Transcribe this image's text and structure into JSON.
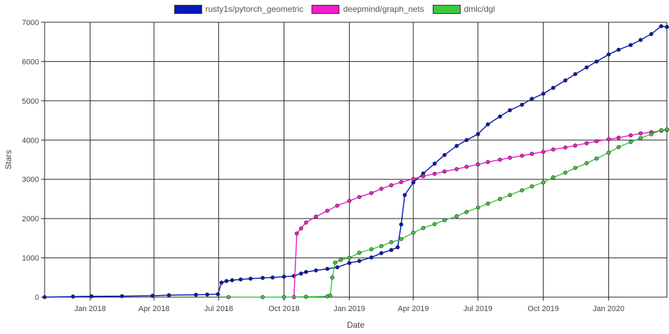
{
  "chart_data": {
    "type": "line",
    "xlabel": "Date",
    "ylabel": "Stars",
    "x_axis_type": "time",
    "xlim": [
      "2017-10-29",
      "2020-03-23"
    ],
    "ylim": [
      0,
      7000
    ],
    "x_ticks": [
      {
        "date": "2018-01-01",
        "label": "Jan 2018"
      },
      {
        "date": "2018-04-01",
        "label": "Apr 2018"
      },
      {
        "date": "2018-07-01",
        "label": "Jul 2018"
      },
      {
        "date": "2018-10-01",
        "label": "Oct 2018"
      },
      {
        "date": "2019-01-01",
        "label": "Jan 2019"
      },
      {
        "date": "2019-04-01",
        "label": "Apr 2019"
      },
      {
        "date": "2019-07-01",
        "label": "Jul 2019"
      },
      {
        "date": "2019-10-01",
        "label": "Oct 2019"
      },
      {
        "date": "2020-01-01",
        "label": "Jan 2020"
      }
    ],
    "y_ticks": [
      0,
      1000,
      2000,
      3000,
      4000,
      5000,
      6000,
      7000
    ],
    "grid": true,
    "legend_position": "top-center",
    "series": [
      {
        "name": "rusty1s/pytorch_geometric",
        "color": "#0a1ab5",
        "points": [
          [
            "2017-10-29",
            0
          ],
          [
            "2017-12-08",
            15
          ],
          [
            "2018-01-03",
            20
          ],
          [
            "2018-02-15",
            25
          ],
          [
            "2018-03-30",
            35
          ],
          [
            "2018-04-22",
            50
          ],
          [
            "2018-05-30",
            60
          ],
          [
            "2018-06-15",
            65
          ],
          [
            "2018-06-30",
            75
          ],
          [
            "2018-07-05",
            370
          ],
          [
            "2018-07-12",
            410
          ],
          [
            "2018-07-20",
            430
          ],
          [
            "2018-08-01",
            450
          ],
          [
            "2018-08-15",
            470
          ],
          [
            "2018-09-01",
            490
          ],
          [
            "2018-09-15",
            500
          ],
          [
            "2018-10-01",
            520
          ],
          [
            "2018-10-15",
            540
          ],
          [
            "2018-10-25",
            600
          ],
          [
            "2018-11-01",
            640
          ],
          [
            "2018-11-15",
            680
          ],
          [
            "2018-12-01",
            720
          ],
          [
            "2018-12-15",
            760
          ],
          [
            "2019-01-01",
            870
          ],
          [
            "2019-01-15",
            920
          ],
          [
            "2019-02-01",
            1010
          ],
          [
            "2019-02-15",
            1120
          ],
          [
            "2019-03-01",
            1200
          ],
          [
            "2019-03-10",
            1270
          ],
          [
            "2019-03-15",
            1850
          ],
          [
            "2019-03-20",
            2600
          ],
          [
            "2019-04-01",
            2920
          ],
          [
            "2019-04-15",
            3150
          ],
          [
            "2019-05-01",
            3400
          ],
          [
            "2019-05-15",
            3620
          ],
          [
            "2019-06-01",
            3850
          ],
          [
            "2019-06-15",
            4000
          ],
          [
            "2019-07-01",
            4150
          ],
          [
            "2019-07-15",
            4400
          ],
          [
            "2019-08-01",
            4600
          ],
          [
            "2019-08-15",
            4760
          ],
          [
            "2019-09-01",
            4900
          ],
          [
            "2019-09-15",
            5050
          ],
          [
            "2019-10-01",
            5180
          ],
          [
            "2019-10-15",
            5330
          ],
          [
            "2019-11-01",
            5520
          ],
          [
            "2019-11-15",
            5680
          ],
          [
            "2019-12-01",
            5850
          ],
          [
            "2019-12-15",
            6000
          ],
          [
            "2020-01-01",
            6180
          ],
          [
            "2020-01-15",
            6300
          ],
          [
            "2020-02-01",
            6420
          ],
          [
            "2020-02-15",
            6550
          ],
          [
            "2020-03-01",
            6700
          ],
          [
            "2020-03-15",
            6900
          ],
          [
            "2020-03-23",
            6880
          ]
        ]
      },
      {
        "name": "deepmind/graph_nets",
        "color": "#f01fc8",
        "points": [
          [
            "2018-10-15",
            0
          ],
          [
            "2018-10-19",
            1620
          ],
          [
            "2018-10-25",
            1750
          ],
          [
            "2018-11-01",
            1900
          ],
          [
            "2018-11-15",
            2050
          ],
          [
            "2018-12-01",
            2200
          ],
          [
            "2018-12-15",
            2330
          ],
          [
            "2019-01-01",
            2450
          ],
          [
            "2019-01-15",
            2550
          ],
          [
            "2019-02-01",
            2650
          ],
          [
            "2019-02-15",
            2760
          ],
          [
            "2019-03-01",
            2850
          ],
          [
            "2019-03-15",
            2930
          ],
          [
            "2019-04-01",
            3010
          ],
          [
            "2019-04-15",
            3080
          ],
          [
            "2019-05-01",
            3140
          ],
          [
            "2019-05-15",
            3200
          ],
          [
            "2019-06-01",
            3260
          ],
          [
            "2019-06-15",
            3320
          ],
          [
            "2019-07-01",
            3380
          ],
          [
            "2019-07-15",
            3440
          ],
          [
            "2019-08-01",
            3500
          ],
          [
            "2019-08-15",
            3550
          ],
          [
            "2019-09-01",
            3600
          ],
          [
            "2019-09-15",
            3650
          ],
          [
            "2019-10-01",
            3700
          ],
          [
            "2019-10-15",
            3760
          ],
          [
            "2019-11-01",
            3810
          ],
          [
            "2019-11-15",
            3860
          ],
          [
            "2019-12-01",
            3920
          ],
          [
            "2019-12-15",
            3970
          ],
          [
            "2020-01-01",
            4020
          ],
          [
            "2020-01-15",
            4060
          ],
          [
            "2020-02-01",
            4120
          ],
          [
            "2020-02-15",
            4170
          ],
          [
            "2020-03-01",
            4200
          ],
          [
            "2020-03-15",
            4240
          ],
          [
            "2020-03-23",
            4260
          ]
        ]
      },
      {
        "name": "dmlc/dgl",
        "color": "#3ec93e",
        "points": [
          [
            "2018-07-15",
            0
          ],
          [
            "2018-09-01",
            0
          ],
          [
            "2018-10-01",
            0
          ],
          [
            "2018-11-01",
            10
          ],
          [
            "2018-12-01",
            20
          ],
          [
            "2018-12-05",
            40
          ],
          [
            "2018-12-08",
            500
          ],
          [
            "2018-12-12",
            880
          ],
          [
            "2018-12-20",
            950
          ],
          [
            "2019-01-01",
            1000
          ],
          [
            "2019-01-15",
            1130
          ],
          [
            "2019-02-01",
            1220
          ],
          [
            "2019-02-15",
            1300
          ],
          [
            "2019-03-01",
            1400
          ],
          [
            "2019-03-15",
            1480
          ],
          [
            "2019-04-01",
            1640
          ],
          [
            "2019-04-15",
            1760
          ],
          [
            "2019-05-01",
            1860
          ],
          [
            "2019-05-15",
            1960
          ],
          [
            "2019-06-01",
            2060
          ],
          [
            "2019-06-15",
            2170
          ],
          [
            "2019-07-01",
            2280
          ],
          [
            "2019-07-15",
            2380
          ],
          [
            "2019-08-01",
            2500
          ],
          [
            "2019-08-15",
            2600
          ],
          [
            "2019-09-01",
            2720
          ],
          [
            "2019-09-15",
            2820
          ],
          [
            "2019-10-01",
            2920
          ],
          [
            "2019-10-15",
            3050
          ],
          [
            "2019-11-01",
            3170
          ],
          [
            "2019-11-15",
            3290
          ],
          [
            "2019-12-01",
            3410
          ],
          [
            "2019-12-15",
            3530
          ],
          [
            "2020-01-01",
            3680
          ],
          [
            "2020-01-15",
            3820
          ],
          [
            "2020-02-01",
            3950
          ],
          [
            "2020-02-15",
            4050
          ],
          [
            "2020-03-01",
            4150
          ],
          [
            "2020-03-15",
            4250
          ],
          [
            "2020-03-23",
            4270
          ]
        ]
      }
    ]
  }
}
